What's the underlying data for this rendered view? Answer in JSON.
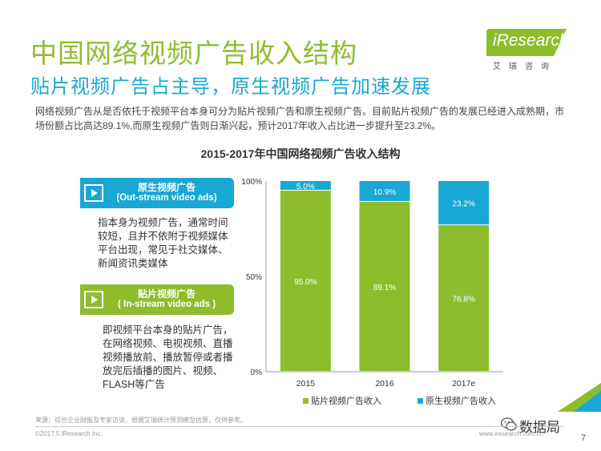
{
  "page": {
    "title": "中国网络视频广告收入结构",
    "subtitle": "贴片视频广告占主导，原生视频广告加速发展",
    "intro": "网络视频广告从是否依托于视频平台本身可分为贴片视频广告和原生视频广告。目前贴片视频广告的发展已经进入成熟期，市场份额占比高达89.1%,而原生视频广告则日渐兴起，预计2017年收入占比进一步提升至23.2%。",
    "logo": {
      "text": "iResearch",
      "sub": "艾瑞咨询"
    }
  },
  "cards": [
    {
      "title": "原生视频广告",
      "subtitle": "(Out-stream video ads)",
      "description": "指本身为视频广告，通常时间较短，且并不依附于视频媒体平台出现，常见于社交媒体、新闻资讯类媒体",
      "color": "#19a7d6"
    },
    {
      "title": "贴片视频广告",
      "subtitle": "( In-stream video ads )",
      "description": "即视频平台本身的贴片广告，在网络视频、电视视频、直播视频播放前、播放暂停或者播放完后插播的图片、视频、FLASH等广告",
      "color": "#8dbd2d"
    }
  ],
  "chart_data": {
    "type": "bar",
    "stacked": true,
    "title": "2015-2017年中国网络视频广告收入结构",
    "categories": [
      "2015",
      "2016",
      "2017e"
    ],
    "series": [
      {
        "name": "贴片视频广告收入",
        "values": [
          95.0,
          89.1,
          76.8
        ],
        "labels": [
          "95.0%",
          "89.1%",
          "76.8%"
        ],
        "color": "#8dbd2d"
      },
      {
        "name": "原生视频广告收入",
        "values": [
          5.0,
          10.9,
          23.2
        ],
        "labels": [
          "5.0%",
          "10.9%",
          "23.2%"
        ],
        "color": "#19a7d6"
      }
    ],
    "yticks": [
      "0%",
      "50%",
      "100%"
    ],
    "ylim": [
      0,
      100
    ],
    "legend": "bottom"
  },
  "footer": {
    "source": "来源：综合企业财报及专家访谈，根据艾瑞统计预测模型估算，仅供参考。",
    "copyright": "©2017.5 iResearch Inc.",
    "website": "www.iresearch.com.cn",
    "page_number": "7",
    "watermark": "数据局"
  }
}
